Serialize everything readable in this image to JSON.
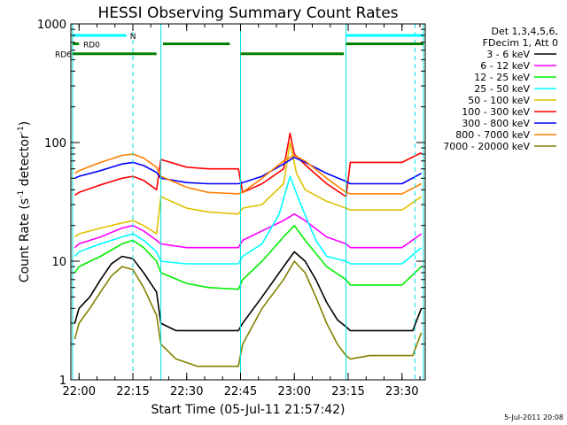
{
  "chart_data": {
    "type": "line",
    "title": "HESSI Observing Summary Count Rates",
    "xlabel": "Start Time (05-Jul-11 21:57:42)",
    "ylabel_main": "Count Rate (s",
    "ylabel_sup1": "-1",
    "ylabel_mid": " detector",
    "ylabel_sup2": "-1",
    "ylabel_end": ")",
    "yscale": "log",
    "ylim": [
      1,
      1000
    ],
    "xlim": [
      21.962,
      23.608
    ],
    "x_ticks": [
      {
        "x": 22.0,
        "label": "22:00"
      },
      {
        "x": 22.25,
        "label": "22:15"
      },
      {
        "x": 22.5,
        "label": "22:30"
      },
      {
        "x": 22.75,
        "label": "22:45"
      },
      {
        "x": 23.0,
        "label": "23:00"
      },
      {
        "x": 23.25,
        "label": "23:15"
      },
      {
        "x": 23.5,
        "label": "23:30"
      }
    ],
    "y_ticks": [
      {
        "y": 1,
        "label": "1"
      },
      {
        "y": 10,
        "label": "10"
      },
      {
        "y": 100,
        "label": "100"
      },
      {
        "y": 1000,
        "label": "1000"
      }
    ],
    "legend_header": [
      "Det 1,3,4,5,6,",
      "FDecim 1, Att 0"
    ],
    "footer_date": "5-Jul-2011 20:08",
    "series": [
      {
        "name": "3 - 6 keV",
        "color": "#000000",
        "x": [
          21.98,
          22.0,
          22.05,
          22.1,
          22.15,
          22.2,
          22.25,
          22.3,
          22.36,
          22.38,
          22.45,
          22.55,
          22.65,
          22.74,
          22.76,
          22.85,
          22.95,
          23.0,
          23.05,
          23.1,
          23.15,
          23.2,
          23.24,
          23.26,
          23.35,
          23.45,
          23.55,
          23.59
        ],
        "y": [
          3,
          4,
          5,
          7,
          9.5,
          11,
          10.5,
          8,
          5.5,
          3,
          2.6,
          2.6,
          2.6,
          2.6,
          3,
          5,
          9,
          12,
          10,
          7,
          4.5,
          3.2,
          2.8,
          2.6,
          2.6,
          2.6,
          2.6,
          4
        ]
      },
      {
        "name": "6 - 12 keV",
        "color": "#ff00ff",
        "x": [
          21.98,
          22.0,
          22.1,
          22.2,
          22.25,
          22.3,
          22.36,
          22.38,
          22.5,
          22.6,
          22.74,
          22.76,
          22.85,
          22.95,
          23.0,
          23.05,
          23.15,
          23.24,
          23.26,
          23.4,
          23.5,
          23.59
        ],
        "y": [
          13,
          14,
          16,
          19,
          20,
          18,
          15,
          14,
          13,
          13,
          13,
          15,
          18,
          22,
          25,
          22,
          16,
          14,
          13,
          13,
          13,
          17
        ]
      },
      {
        "name": "12 - 25 keV",
        "color": "#00ee00",
        "x": [
          21.98,
          22.0,
          22.1,
          22.2,
          22.25,
          22.3,
          22.36,
          22.38,
          22.5,
          22.6,
          22.74,
          22.76,
          22.85,
          22.95,
          23.0,
          23.05,
          23.15,
          23.24,
          23.26,
          23.4,
          23.5,
          23.59
        ],
        "y": [
          8,
          9,
          11,
          14,
          15,
          13,
          10,
          8,
          6.5,
          6,
          5.8,
          7,
          10,
          16,
          20,
          15,
          9,
          7,
          6.3,
          6.3,
          6.3,
          9
        ]
      },
      {
        "name": "25 - 50 keV",
        "color": "#00ffff",
        "x": [
          21.98,
          22.0,
          22.1,
          22.2,
          22.25,
          22.3,
          22.36,
          22.38,
          22.5,
          22.6,
          22.74,
          22.76,
          22.85,
          22.93,
          22.98,
          23.03,
          23.1,
          23.15,
          23.24,
          23.26,
          23.4,
          23.5,
          23.59
        ],
        "y": [
          11,
          12,
          14,
          16,
          17,
          15,
          12,
          10,
          9.5,
          9.5,
          9.5,
          11,
          14,
          25,
          52,
          30,
          15,
          11,
          10,
          9.5,
          9.5,
          9.5,
          13
        ]
      },
      {
        "name": "50 - 100 keV",
        "color": "#e0c000",
        "x": [
          21.98,
          22.0,
          22.1,
          22.2,
          22.25,
          22.3,
          22.36,
          22.38,
          22.5,
          22.6,
          22.74,
          22.76,
          22.85,
          22.95,
          22.98,
          23.01,
          23.05,
          23.15,
          23.24,
          23.26,
          23.4,
          23.5,
          23.59
        ],
        "y": [
          16,
          17,
          19,
          21,
          22,
          20,
          17,
          35,
          28,
          26,
          25,
          28,
          30,
          45,
          100,
          55,
          40,
          32,
          28,
          27,
          27,
          27,
          35
        ]
      },
      {
        "name": "100 - 300 keV",
        "color": "#ff0000",
        "x": [
          21.98,
          22.0,
          22.1,
          22.2,
          22.25,
          22.3,
          22.36,
          22.38,
          22.5,
          22.6,
          22.74,
          22.76,
          22.85,
          22.95,
          22.98,
          23.0,
          23.05,
          23.15,
          23.24,
          23.26,
          23.4,
          23.5,
          23.59
        ],
        "y": [
          36,
          38,
          44,
          50,
          52,
          48,
          40,
          72,
          62,
          60,
          60,
          38,
          45,
          60,
          120,
          80,
          65,
          45,
          35,
          68,
          68,
          68,
          82
        ]
      },
      {
        "name": "300 - 800 keV",
        "color": "#0000ff",
        "x": [
          21.98,
          22.0,
          22.1,
          22.2,
          22.25,
          22.3,
          22.36,
          22.38,
          22.5,
          22.6,
          22.74,
          22.76,
          22.85,
          22.95,
          23.0,
          23.05,
          23.15,
          23.24,
          23.26,
          23.4,
          23.5,
          23.59
        ],
        "y": [
          50,
          52,
          58,
          66,
          68,
          64,
          56,
          50,
          46,
          45,
          45,
          46,
          52,
          66,
          75,
          68,
          55,
          47,
          45,
          45,
          45,
          55
        ]
      },
      {
        "name": "800 - 7000 keV",
        "color": "#ff8000",
        "x": [
          21.98,
          22.0,
          22.1,
          22.2,
          22.25,
          22.3,
          22.36,
          22.38,
          22.5,
          22.6,
          22.74,
          22.76,
          22.85,
          22.95,
          23.0,
          23.05,
          23.15,
          23.24,
          23.26,
          23.4,
          23.5,
          23.59
        ],
        "y": [
          55,
          58,
          68,
          78,
          80,
          74,
          62,
          52,
          42,
          38,
          37,
          38,
          50,
          70,
          78,
          70,
          50,
          38,
          37,
          37,
          37,
          45
        ]
      },
      {
        "name": "7000 - 20000 keV",
        "color": "#808000",
        "x": [
          21.98,
          22.0,
          22.05,
          22.1,
          22.15,
          22.2,
          22.25,
          22.3,
          22.36,
          22.38,
          22.45,
          22.55,
          22.65,
          22.74,
          22.76,
          22.85,
          22.95,
          23.0,
          23.05,
          23.1,
          23.15,
          23.2,
          23.24,
          23.26,
          23.35,
          23.45,
          23.55,
          23.59
        ],
        "y": [
          2.2,
          3,
          4,
          5.5,
          7.5,
          9,
          8.5,
          6,
          3.5,
          2,
          1.5,
          1.3,
          1.3,
          1.3,
          2,
          4,
          7,
          10,
          8,
          5,
          3,
          2,
          1.6,
          1.5,
          1.6,
          1.6,
          1.6,
          2.5
        ]
      }
    ],
    "markers": [
      {
        "label": "N",
        "color": "#00ffff",
        "level": 800,
        "segments": [
          [
            21.97,
            22.22
          ],
          [
            23.24,
            23.6
          ]
        ]
      },
      {
        "label": "RD0",
        "color": "#008000",
        "level": 680,
        "segments": [
          [
            21.97,
            22.0
          ],
          [
            22.39,
            22.7
          ],
          [
            23.24,
            23.6
          ]
        ]
      },
      {
        "label": "RD6",
        "color": "#008000",
        "level": 560,
        "segments": [
          [
            21.97,
            22.36
          ],
          [
            22.75,
            23.23
          ]
        ]
      }
    ],
    "vlines_solid_cyan": [
      21.97,
      22.38,
      22.75,
      23.24,
      23.6
    ],
    "vlines_dashed_cyan": [
      22.25,
      23.56
    ]
  }
}
